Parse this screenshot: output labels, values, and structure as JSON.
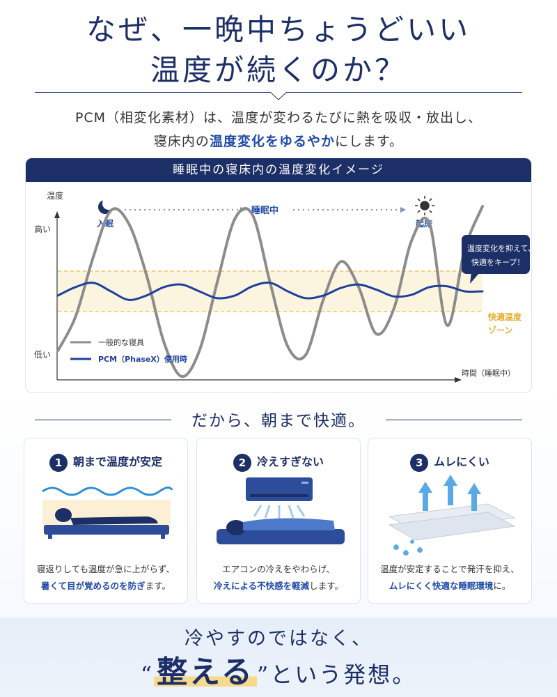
{
  "title": {
    "line1": "なぜ、一晩中ちょうどいい",
    "line2": "温度が続くのか？"
  },
  "lead": {
    "line1": "PCM（相変化素材）は、温度が変わるたびに熱を吸収・放出し、",
    "line2_pre": "寝床内の",
    "line2_hl": "温度変化をゆるやか",
    "line2_post": "にします。"
  },
  "chart": {
    "heading": "睡眠中の寝床内の温度変化イメージ",
    "y_axis": "温度",
    "y_high": "高い",
    "y_low": "低い",
    "x_axis": "時間（睡眠中）",
    "sleep_start": "入眠",
    "sleeping": "睡眠中",
    "wake": "起床",
    "callout_1": "温度変化を抑えて、",
    "callout_2": "快適をキープ！",
    "zone_1": "快適温度",
    "zone_2": "ゾーン",
    "colors": {
      "normal": "#8c8c8c",
      "pcm": "#1f3f9e",
      "zone": "#fbf4df",
      "zone_border": "#f0c46a"
    }
  },
  "chart_data": {
    "type": "line",
    "title": "睡眠中の寝床内の温度変化イメージ",
    "xlabel": "時間（睡眠中）",
    "ylabel": "温度",
    "y_ticks": [
      "低い",
      "高い"
    ],
    "series": [
      {
        "name": "一般的な寝具",
        "x": [
          0,
          1,
          2,
          3,
          4,
          5,
          6,
          7,
          8,
          9,
          10,
          11,
          12,
          13,
          14,
          15,
          16,
          17,
          18,
          19,
          20,
          21,
          22,
          23,
          24
        ],
        "values": [
          -0.7,
          -0.3,
          0.4,
          0.95,
          0.8,
          0.2,
          -0.6,
          -1.0,
          -0.7,
          0.1,
          0.85,
          0.9,
          0.1,
          -0.65,
          -0.75,
          -0.1,
          0.35,
          0.05,
          -0.5,
          -0.2,
          0.6,
          0.8,
          -0.4,
          0.5,
          1.0
        ]
      },
      {
        "name": "PCM（PhaseX）使用時",
        "x": [
          0,
          1,
          2,
          3,
          4,
          5,
          6,
          7,
          8,
          9,
          10,
          11,
          12,
          13,
          14,
          15,
          16,
          17,
          18,
          19,
          20,
          21,
          22,
          23,
          24
        ],
        "values": [
          -0.05,
          0.05,
          0.1,
          0.0,
          -0.1,
          -0.05,
          0.05,
          0.08,
          0.0,
          -0.08,
          -0.05,
          0.06,
          0.1,
          0.0,
          -0.08,
          -0.05,
          0.04,
          0.08,
          0.02,
          -0.06,
          -0.04,
          0.05,
          0.06,
          0.0,
          0.0
        ]
      }
    ],
    "comfort_zone": [
      -0.25,
      0.25
    ],
    "legend": "bottom-left",
    "grid": false
  },
  "legend": {
    "normal": "一般的な寝具",
    "pcm": "PCM（PhaseX）使用時"
  },
  "section2": {
    "heading": "だから、朝まで快適。"
  },
  "cards": [
    {
      "num": "1",
      "title": "朝まで温度が安定",
      "text1": "寝返りしても温度が急に上がらず、",
      "text2_hl": "暑くて目が覚めるのを防ぎ",
      "text2_post": "ます。"
    },
    {
      "num": "2",
      "title": "冷えすぎない",
      "text1": "エアコンの冷えをやわらげ、",
      "text2_hl": "冷えによる不快感を軽減",
      "text2_post": "します。"
    },
    {
      "num": "3",
      "title": "ムレにくい",
      "text1": "温度が安定することで発汗を抑え、",
      "text2_hl": "ムレにくく快適な睡眠環境",
      "text2_post": "に。"
    }
  ],
  "bottom": {
    "line1": "冷やすのではなく、",
    "quote_open": "“",
    "word": "整える",
    "quote_close": "”",
    "line2_post": "という発想。"
  }
}
